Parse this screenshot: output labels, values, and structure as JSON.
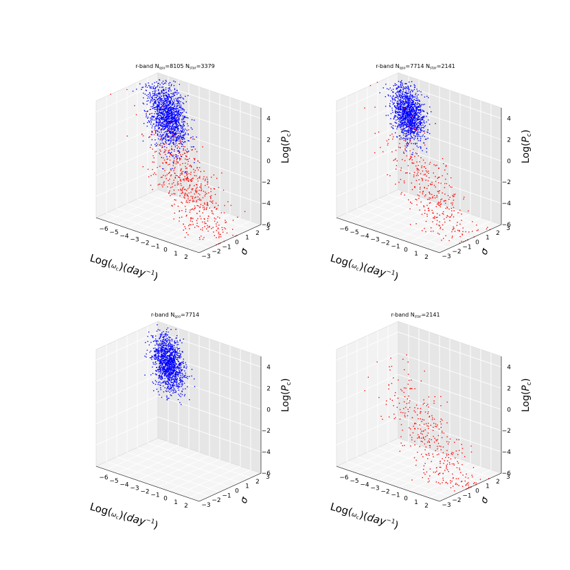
{
  "chart_data": [
    {
      "type": "scatter",
      "projection": "3d",
      "title": "r-band N",
      "title_parts": [
        {
          "text": "r-band N",
          "sub": false
        },
        {
          "text": "qso",
          "sub": true
        },
        {
          "text": "=8105 N",
          "sub": false
        },
        {
          "text": "star",
          "sub": true
        },
        {
          "text": "=3379",
          "sub": false
        }
      ],
      "xlabel": "Log(ω_c)(day^-1)",
      "ylabel": "σ",
      "zlabel": "Log(P_c)",
      "xlim": [
        -7,
        3
      ],
      "ylim": [
        -3,
        3
      ],
      "zlim": [
        -6,
        5
      ],
      "xticks": [
        "−6",
        "−5",
        "−4",
        "−3",
        "−2",
        "−1",
        "0",
        "1",
        "2"
      ],
      "yticks": [
        "−3",
        "−2",
        "−1",
        "0",
        "1",
        "2",
        "3"
      ],
      "zticks": [
        "−6",
        "−4",
        "−2",
        "0",
        "2",
        "4"
      ],
      "grid": true,
      "series": [
        {
          "label": "qso",
          "color": "#0000ff",
          "count": 8105,
          "x_mean": -4.5,
          "x_sd": 0.6,
          "y_mean": 1.5,
          "y_sd": 0.6,
          "z_mean": 2.3,
          "z_sd": 1.4
        },
        {
          "label": "star",
          "color": "#ff0000",
          "count": 3379,
          "x_mean": -1.0,
          "x_sd": 1.2,
          "y_mean": 0.0,
          "y_sd": 0.8,
          "z_mean": -2.5,
          "z_sd": 2.5
        }
      ]
    },
    {
      "type": "scatter",
      "projection": "3d",
      "title": "r-band N",
      "title_parts": [
        {
          "text": "r-band N",
          "sub": false
        },
        {
          "text": "qso",
          "sub": true
        },
        {
          "text": "=7714 N",
          "sub": false
        },
        {
          "text": "star",
          "sub": true
        },
        {
          "text": "=2141",
          "sub": false
        }
      ],
      "xlabel": "Log(ω_c)(day^-1)",
      "ylabel": "σ",
      "zlabel": "Log(P_c)",
      "xlim": [
        -7,
        3
      ],
      "ylim": [
        -3,
        3
      ],
      "zlim": [
        -6,
        5
      ],
      "xticks": [
        "−6",
        "−5",
        "−4",
        "−3",
        "−2",
        "−1",
        "0",
        "1",
        "2"
      ],
      "yticks": [
        "−3",
        "−2",
        "−1",
        "0",
        "1",
        "2",
        "3"
      ],
      "zticks": [
        "−6",
        "−4",
        "−2",
        "0",
        "2",
        "4"
      ],
      "grid": true,
      "series": [
        {
          "label": "qso",
          "color": "#0000ff",
          "count": 7714,
          "x_mean": -4.6,
          "x_sd": 0.5,
          "y_mean": 1.6,
          "y_sd": 0.5,
          "z_mean": 2.5,
          "z_sd": 1.2
        },
        {
          "label": "star",
          "color": "#ff0000",
          "count": 2141,
          "x_mean": -1.0,
          "x_sd": 1.3,
          "y_mean": 0.0,
          "y_sd": 0.8,
          "z_mean": -2.8,
          "z_sd": 2.6
        }
      ]
    },
    {
      "type": "scatter",
      "projection": "3d",
      "title": "r-band N",
      "title_parts": [
        {
          "text": "r-band N",
          "sub": false
        },
        {
          "text": "qso",
          "sub": true
        },
        {
          "text": "=7714",
          "sub": false
        }
      ],
      "xlabel": "Log(ω_c)(day^-1)",
      "ylabel": "σ",
      "zlabel": "Log(P_c)",
      "xlim": [
        -7,
        3
      ],
      "ylim": [
        -3,
        3
      ],
      "zlim": [
        -6,
        5
      ],
      "xticks": [
        "−6",
        "−5",
        "−4",
        "−3",
        "−2",
        "−1",
        "0",
        "1",
        "2"
      ],
      "yticks": [
        "−3",
        "−2",
        "−1",
        "0",
        "1",
        "2",
        "3"
      ],
      "zticks": [
        "−6",
        "−4",
        "−2",
        "0",
        "2",
        "4"
      ],
      "grid": true,
      "series": [
        {
          "label": "qso",
          "color": "#0000ff",
          "count": 7714,
          "x_mean": -4.6,
          "x_sd": 0.5,
          "y_mean": 1.6,
          "y_sd": 0.5,
          "z_mean": 2.5,
          "z_sd": 1.2
        }
      ]
    },
    {
      "type": "scatter",
      "projection": "3d",
      "title": "r-band N",
      "title_parts": [
        {
          "text": "r-band N",
          "sub": false
        },
        {
          "text": "star",
          "sub": true
        },
        {
          "text": "=2141",
          "sub": false
        }
      ],
      "xlabel": "Log(ω_c)(day^-1)",
      "ylabel": "σ",
      "zlabel": "Log(P_c)",
      "xlim": [
        -7,
        3
      ],
      "ylim": [
        -3,
        3
      ],
      "zlim": [
        -6,
        5
      ],
      "xticks": [
        "−6",
        "−5",
        "−4",
        "−3",
        "−2",
        "−1",
        "0",
        "1",
        "2"
      ],
      "yticks": [
        "−3",
        "−2",
        "−1",
        "0",
        "1",
        "2",
        "3"
      ],
      "zticks": [
        "−6",
        "−4",
        "−2",
        "0",
        "2",
        "4"
      ],
      "grid": true,
      "series": [
        {
          "label": "star",
          "color": "#ff0000",
          "count": 2141,
          "x_mean": -1.0,
          "x_sd": 1.3,
          "y_mean": 0.0,
          "y_sd": 0.8,
          "z_mean": -2.8,
          "z_sd": 2.6
        }
      ]
    }
  ]
}
